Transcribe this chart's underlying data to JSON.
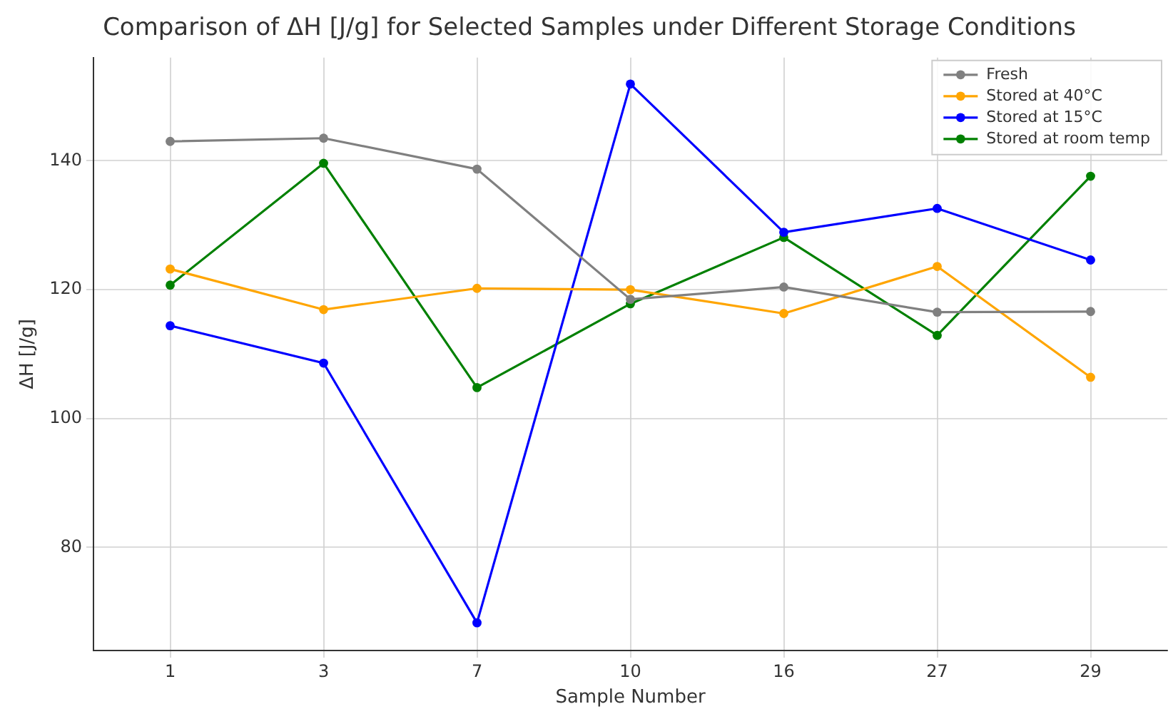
{
  "chart_data": {
    "type": "line",
    "title": "Comparison of ΔH [J/g] for Selected Samples under Different Storage Conditions",
    "xlabel": "Sample Number",
    "ylabel": "ΔH [J/g]",
    "categories": [
      "1",
      "3",
      "7",
      "10",
      "16",
      "27",
      "29"
    ],
    "series": [
      {
        "name": "Fresh",
        "color": "#808080",
        "values": [
          143.0,
          143.5,
          138.7,
          118.5,
          120.4,
          116.5,
          116.6
        ]
      },
      {
        "name": "Stored at 40°C",
        "color": "#ffa500",
        "values": [
          123.2,
          116.9,
          120.2,
          120.0,
          116.3,
          123.6,
          106.4
        ]
      },
      {
        "name": "Stored at 15°C",
        "color": "#0000ff",
        "values": [
          114.4,
          108.6,
          68.3,
          151.9,
          128.9,
          132.6,
          124.6
        ]
      },
      {
        "name": "Stored at room temp",
        "color": "#008000",
        "values": [
          120.7,
          139.6,
          104.8,
          117.8,
          128.1,
          112.9,
          137.6
        ]
      }
    ],
    "ylim": [
      64,
      156
    ],
    "yticks": [
      80,
      100,
      120,
      140
    ],
    "grid": true,
    "legend": "top right",
    "marker": "circle",
    "line_style": "solid"
  }
}
